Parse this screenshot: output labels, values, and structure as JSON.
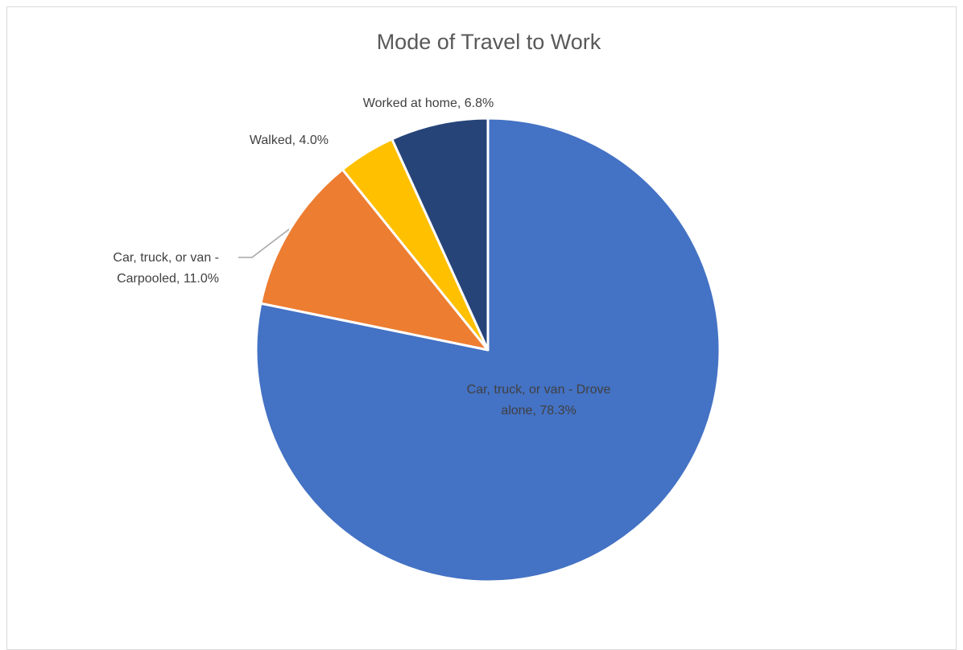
{
  "chart_data": {
    "type": "pie",
    "title": "Mode of Travel to Work",
    "start_angle_deg": 0,
    "direction": "clockwise",
    "slices": [
      {
        "label": "Car, truck, or van - Drove alone",
        "value": 78.3,
        "value_label": "78.3%",
        "color": "#4472C4"
      },
      {
        "label": "Car, truck, or van - Carpooled",
        "value": 11.0,
        "value_label": "11.0%",
        "color": "#ED7D31"
      },
      {
        "label": "Walked",
        "value": 4.0,
        "value_label": "4.0%",
        "color": "#FFC000"
      },
      {
        "label": "Worked at home",
        "value": 6.8,
        "value_label": "6.8%",
        "color": "#264478"
      }
    ],
    "legend": "none"
  }
}
